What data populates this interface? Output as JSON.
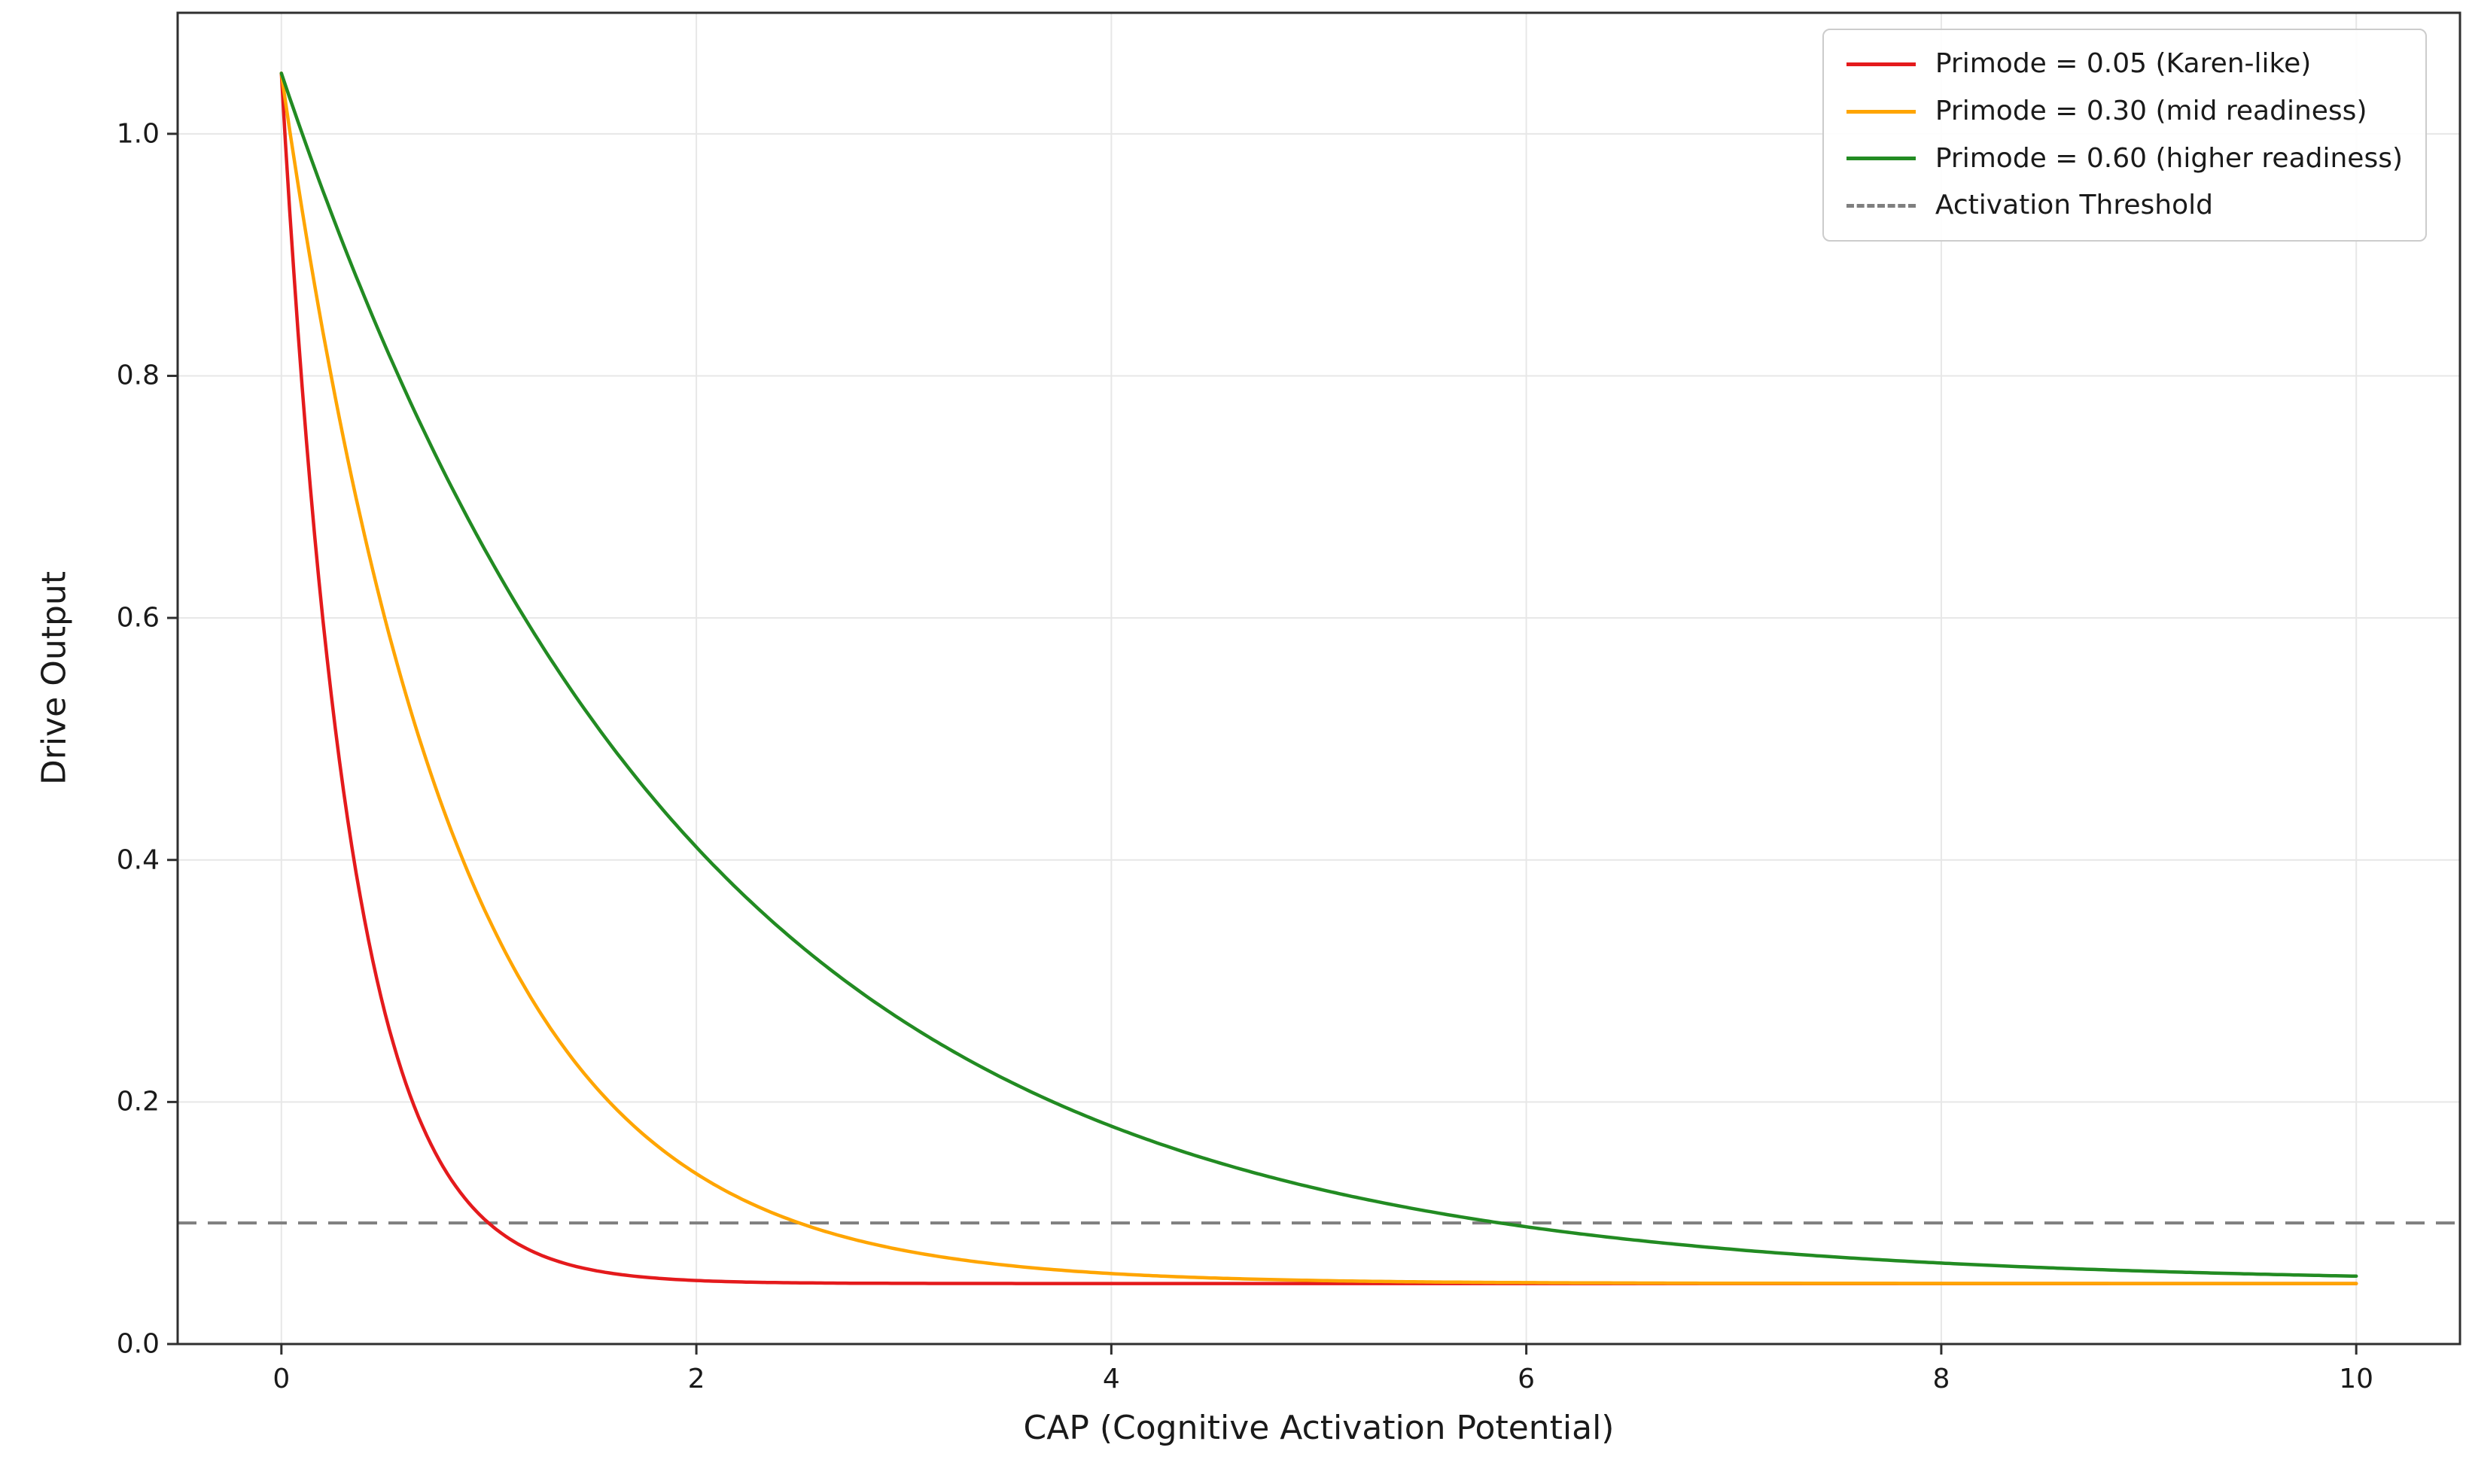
{
  "figure": {
    "background": "#ffffff"
  },
  "chart_data": {
    "type": "line",
    "title": "",
    "xlabel": "CAP (Cognitive Activation Potential)",
    "ylabel": "Drive Output",
    "xlim": [
      -0.5,
      10.5
    ],
    "ylim": [
      0,
      1.1
    ],
    "xticks": [
      0,
      2,
      4,
      6,
      8,
      10
    ],
    "xtick_labels": [
      "0",
      "2",
      "4",
      "6",
      "8",
      "10"
    ],
    "yticks": [
      0,
      0.2,
      0.4,
      0.6,
      0.8,
      1.0
    ],
    "ytick_labels": [
      "0.0",
      "0.2",
      "0.4",
      "0.6",
      "0.8",
      "1.0"
    ],
    "grid": true,
    "grid_color": "#e7e7e7",
    "legend_position": "upper right",
    "x_sample_range": [
      0,
      10
    ],
    "model": "y = baseline + amplitude * exp(-k * x)",
    "series": [
      {
        "name": "Primode = 0.05 (Karen-like)",
        "color": "#e41a1c",
        "baseline": 0.05,
        "amplitude": 1.0,
        "k": 3.0,
        "x_at_integer": [
          0,
          1,
          2,
          3,
          4,
          5,
          6,
          7,
          8,
          9,
          10
        ],
        "values_at_integer_x": [
          1.05,
          0.0998,
          0.0525,
          0.0501,
          0.05,
          0.05,
          0.05,
          0.05,
          0.05,
          0.05,
          0.05
        ]
      },
      {
        "name": "Primode = 0.30 (mid readiness)",
        "color": "#ffa500",
        "baseline": 0.05,
        "amplitude": 1.0,
        "k": 1.2,
        "x_at_integer": [
          0,
          1,
          2,
          3,
          4,
          5,
          6,
          7,
          8,
          9,
          10
        ],
        "values_at_integer_x": [
          1.05,
          0.3512,
          0.1407,
          0.0773,
          0.0582,
          0.0525,
          0.0507,
          0.0502,
          0.0501,
          0.05,
          0.05
        ]
      },
      {
        "name": "Primode = 0.60 (higher readiness)",
        "color": "#228B22",
        "baseline": 0.05,
        "amplitude": 1.0,
        "k": 0.51,
        "x_at_integer": [
          0,
          1,
          2,
          3,
          4,
          5,
          6,
          7,
          8,
          9,
          10
        ],
        "values_at_integer_x": [
          1.05,
          0.6504,
          0.4104,
          0.2664,
          0.18,
          0.1281,
          0.0969,
          0.0781,
          0.0669,
          0.0601,
          0.0561
        ]
      }
    ],
    "threshold": {
      "label": "Activation Threshold",
      "y": 0.1,
      "color": "#7f7f7f",
      "linestyle": "dashed"
    }
  }
}
